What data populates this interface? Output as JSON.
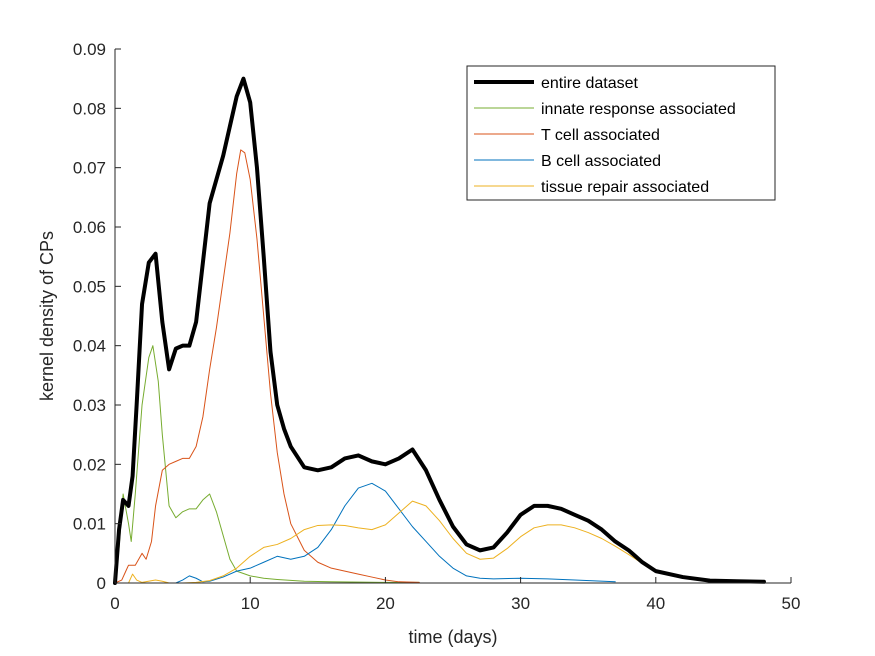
{
  "chart_data": {
    "type": "line",
    "xlabel": "time (days)",
    "ylabel": "kernel density of CPs",
    "xlim": [
      0,
      50
    ],
    "ylim": [
      0,
      0.09
    ],
    "xticks": [
      0,
      10,
      20,
      30,
      40,
      50
    ],
    "yticks": [
      0,
      0.01,
      0.02,
      0.03,
      0.04,
      0.05,
      0.06,
      0.07,
      0.08,
      0.09
    ],
    "xtick_labels": [
      "0",
      "10",
      "20",
      "30",
      "40",
      "50"
    ],
    "ytick_labels": [
      "0",
      "0.01",
      "0.02",
      "0.03",
      "0.04",
      "0.05",
      "0.06",
      "0.07",
      "0.08",
      "0.09"
    ],
    "grid": false,
    "legend_position": "top-right",
    "series": [
      {
        "name": "entire dataset",
        "color": "#000000",
        "width": 4,
        "points": [
          [
            0,
            0
          ],
          [
            0.3,
            0.009
          ],
          [
            0.6,
            0.014
          ],
          [
            1.0,
            0.013
          ],
          [
            1.3,
            0.018
          ],
          [
            1.6,
            0.03
          ],
          [
            2.0,
            0.047
          ],
          [
            2.5,
            0.054
          ],
          [
            3.0,
            0.0555
          ],
          [
            3.5,
            0.044
          ],
          [
            4.0,
            0.036
          ],
          [
            4.5,
            0.0395
          ],
          [
            5.0,
            0.04
          ],
          [
            5.5,
            0.04
          ],
          [
            6.0,
            0.044
          ],
          [
            6.5,
            0.054
          ],
          [
            7.0,
            0.064
          ],
          [
            7.5,
            0.068
          ],
          [
            8.0,
            0.072
          ],
          [
            8.5,
            0.077
          ],
          [
            9.0,
            0.082
          ],
          [
            9.5,
            0.085
          ],
          [
            10.0,
            0.081
          ],
          [
            10.5,
            0.07
          ],
          [
            11.0,
            0.055
          ],
          [
            11.5,
            0.039
          ],
          [
            12.0,
            0.03
          ],
          [
            12.5,
            0.026
          ],
          [
            13.0,
            0.023
          ],
          [
            14.0,
            0.0195
          ],
          [
            15.0,
            0.019
          ],
          [
            16.0,
            0.0195
          ],
          [
            17.0,
            0.021
          ],
          [
            18.0,
            0.0215
          ],
          [
            19.0,
            0.0205
          ],
          [
            20.0,
            0.02
          ],
          [
            21.0,
            0.021
          ],
          [
            22.0,
            0.0225
          ],
          [
            23.0,
            0.019
          ],
          [
            24.0,
            0.014
          ],
          [
            25.0,
            0.0095
          ],
          [
            26.0,
            0.0065
          ],
          [
            27.0,
            0.0055
          ],
          [
            28.0,
            0.006
          ],
          [
            29.0,
            0.0085
          ],
          [
            30.0,
            0.0115
          ],
          [
            31.0,
            0.013
          ],
          [
            32.0,
            0.013
          ],
          [
            33.0,
            0.0125
          ],
          [
            34.0,
            0.0115
          ],
          [
            35.0,
            0.0105
          ],
          [
            36.0,
            0.009
          ],
          [
            37.0,
            0.007
          ],
          [
            38.0,
            0.0055
          ],
          [
            39.0,
            0.0035
          ],
          [
            40.0,
            0.002
          ],
          [
            42.0,
            0.001
          ],
          [
            44.0,
            0.0004
          ],
          [
            46.0,
            0.0003
          ],
          [
            48.0,
            0.0002
          ]
        ]
      },
      {
        "name": "innate response associated",
        "color": "#77AC30",
        "width": 1,
        "points": [
          [
            0,
            0
          ],
          [
            0.3,
            0.006
          ],
          [
            0.6,
            0.015
          ],
          [
            1.0,
            0.01
          ],
          [
            1.2,
            0.007
          ],
          [
            1.5,
            0.015
          ],
          [
            2.0,
            0.03
          ],
          [
            2.5,
            0.038
          ],
          [
            2.8,
            0.04
          ],
          [
            3.2,
            0.034
          ],
          [
            3.5,
            0.025
          ],
          [
            4.0,
            0.013
          ],
          [
            4.5,
            0.011
          ],
          [
            5.0,
            0.012
          ],
          [
            5.5,
            0.0125
          ],
          [
            6.0,
            0.0125
          ],
          [
            6.5,
            0.014
          ],
          [
            7.0,
            0.015
          ],
          [
            7.5,
            0.012
          ],
          [
            8.0,
            0.008
          ],
          [
            8.5,
            0.004
          ],
          [
            9.0,
            0.002
          ],
          [
            10.0,
            0.0012
          ],
          [
            11.0,
            0.0008
          ],
          [
            12.0,
            0.0006
          ],
          [
            14.0,
            0.0003
          ],
          [
            16.0,
            0.0002
          ],
          [
            20.0,
            0.0001
          ],
          [
            22.5,
            0.0001
          ]
        ]
      },
      {
        "name": "T cell associated",
        "color": "#D95319",
        "width": 1,
        "points": [
          [
            0,
            0
          ],
          [
            0.5,
            0.0005
          ],
          [
            0.8,
            0.002
          ],
          [
            1.0,
            0.003
          ],
          [
            1.5,
            0.003
          ],
          [
            2.0,
            0.005
          ],
          [
            2.3,
            0.004
          ],
          [
            2.7,
            0.007
          ],
          [
            3.0,
            0.013
          ],
          [
            3.5,
            0.019
          ],
          [
            4.0,
            0.02
          ],
          [
            4.5,
            0.0205
          ],
          [
            5.0,
            0.021
          ],
          [
            5.5,
            0.021
          ],
          [
            6.0,
            0.023
          ],
          [
            6.5,
            0.028
          ],
          [
            7.0,
            0.036
          ],
          [
            7.5,
            0.043
          ],
          [
            8.0,
            0.051
          ],
          [
            8.5,
            0.059
          ],
          [
            9.0,
            0.069
          ],
          [
            9.3,
            0.073
          ],
          [
            9.6,
            0.0725
          ],
          [
            10.0,
            0.068
          ],
          [
            10.5,
            0.058
          ],
          [
            11.0,
            0.045
          ],
          [
            11.5,
            0.032
          ],
          [
            12.0,
            0.022
          ],
          [
            12.5,
            0.015
          ],
          [
            13.0,
            0.01
          ],
          [
            14.0,
            0.0055
          ],
          [
            15.0,
            0.0035
          ],
          [
            16.0,
            0.0025
          ],
          [
            17.0,
            0.002
          ],
          [
            18.0,
            0.0015
          ],
          [
            19.0,
            0.001
          ],
          [
            20.0,
            0.0005
          ],
          [
            21.0,
            0.0002
          ],
          [
            22.5,
            0.0001
          ]
        ]
      },
      {
        "name": "B cell associated",
        "color": "#0072BD",
        "width": 1,
        "points": [
          [
            0,
            0
          ],
          [
            3.0,
            0
          ],
          [
            4.5,
            0
          ],
          [
            5.0,
            0.0005
          ],
          [
            5.5,
            0.0012
          ],
          [
            6.0,
            0.0008
          ],
          [
            6.5,
            0.0002
          ],
          [
            7.0,
            0.0003
          ],
          [
            8.0,
            0.001
          ],
          [
            9.0,
            0.002
          ],
          [
            10.0,
            0.0025
          ],
          [
            11.0,
            0.0035
          ],
          [
            12.0,
            0.0045
          ],
          [
            13.0,
            0.004
          ],
          [
            14.0,
            0.0045
          ],
          [
            15.0,
            0.006
          ],
          [
            16.0,
            0.009
          ],
          [
            17.0,
            0.013
          ],
          [
            18.0,
            0.016
          ],
          [
            19.0,
            0.0168
          ],
          [
            20.0,
            0.0155
          ],
          [
            21.0,
            0.0125
          ],
          [
            22.0,
            0.0095
          ],
          [
            23.0,
            0.007
          ],
          [
            24.0,
            0.0045
          ],
          [
            25.0,
            0.0025
          ],
          [
            26.0,
            0.0012
          ],
          [
            27.0,
            0.0008
          ],
          [
            28.0,
            0.0007
          ],
          [
            30.0,
            0.0008
          ],
          [
            32.0,
            0.0007
          ],
          [
            34.0,
            0.0005
          ],
          [
            37.0,
            0.0002
          ]
        ]
      },
      {
        "name": "tissue repair associated",
        "color": "#EDB120",
        "width": 1,
        "points": [
          [
            0,
            0
          ],
          [
            1.0,
            0
          ],
          [
            1.3,
            0.0015
          ],
          [
            1.6,
            0.0005
          ],
          [
            2.0,
            0.0001
          ],
          [
            3.0,
            0.0005
          ],
          [
            3.5,
            0.0003
          ],
          [
            4.0,
            0
          ],
          [
            5.0,
            0
          ],
          [
            6.0,
            0.0001
          ],
          [
            7.0,
            0.0004
          ],
          [
            8.0,
            0.0012
          ],
          [
            9.0,
            0.0025
          ],
          [
            10.0,
            0.0045
          ],
          [
            11.0,
            0.006
          ],
          [
            12.0,
            0.0065
          ],
          [
            13.0,
            0.0075
          ],
          [
            14.0,
            0.009
          ],
          [
            15.0,
            0.0097
          ],
          [
            16.0,
            0.0098
          ],
          [
            17.0,
            0.0097
          ],
          [
            18.0,
            0.0093
          ],
          [
            19.0,
            0.009
          ],
          [
            20.0,
            0.0098
          ],
          [
            21.0,
            0.0118
          ],
          [
            22.0,
            0.0138
          ],
          [
            23.0,
            0.013
          ],
          [
            24.0,
            0.0105
          ],
          [
            25.0,
            0.0075
          ],
          [
            26.0,
            0.005
          ],
          [
            27.0,
            0.004
          ],
          [
            28.0,
            0.0042
          ],
          [
            29.0,
            0.0058
          ],
          [
            30.0,
            0.0078
          ],
          [
            31.0,
            0.0093
          ],
          [
            32.0,
            0.0098
          ],
          [
            33.0,
            0.0098
          ],
          [
            34.0,
            0.0093
          ],
          [
            35.0,
            0.0085
          ],
          [
            36.0,
            0.0075
          ],
          [
            37.0,
            0.0062
          ],
          [
            38.0,
            0.0048
          ],
          [
            39.0,
            0.0033
          ],
          [
            40.0,
            0.0019
          ],
          [
            42.0,
            0.0009
          ],
          [
            44.0,
            0.0004
          ],
          [
            46.0,
            0.0003
          ],
          [
            48.0,
            0.0002
          ]
        ]
      }
    ]
  }
}
